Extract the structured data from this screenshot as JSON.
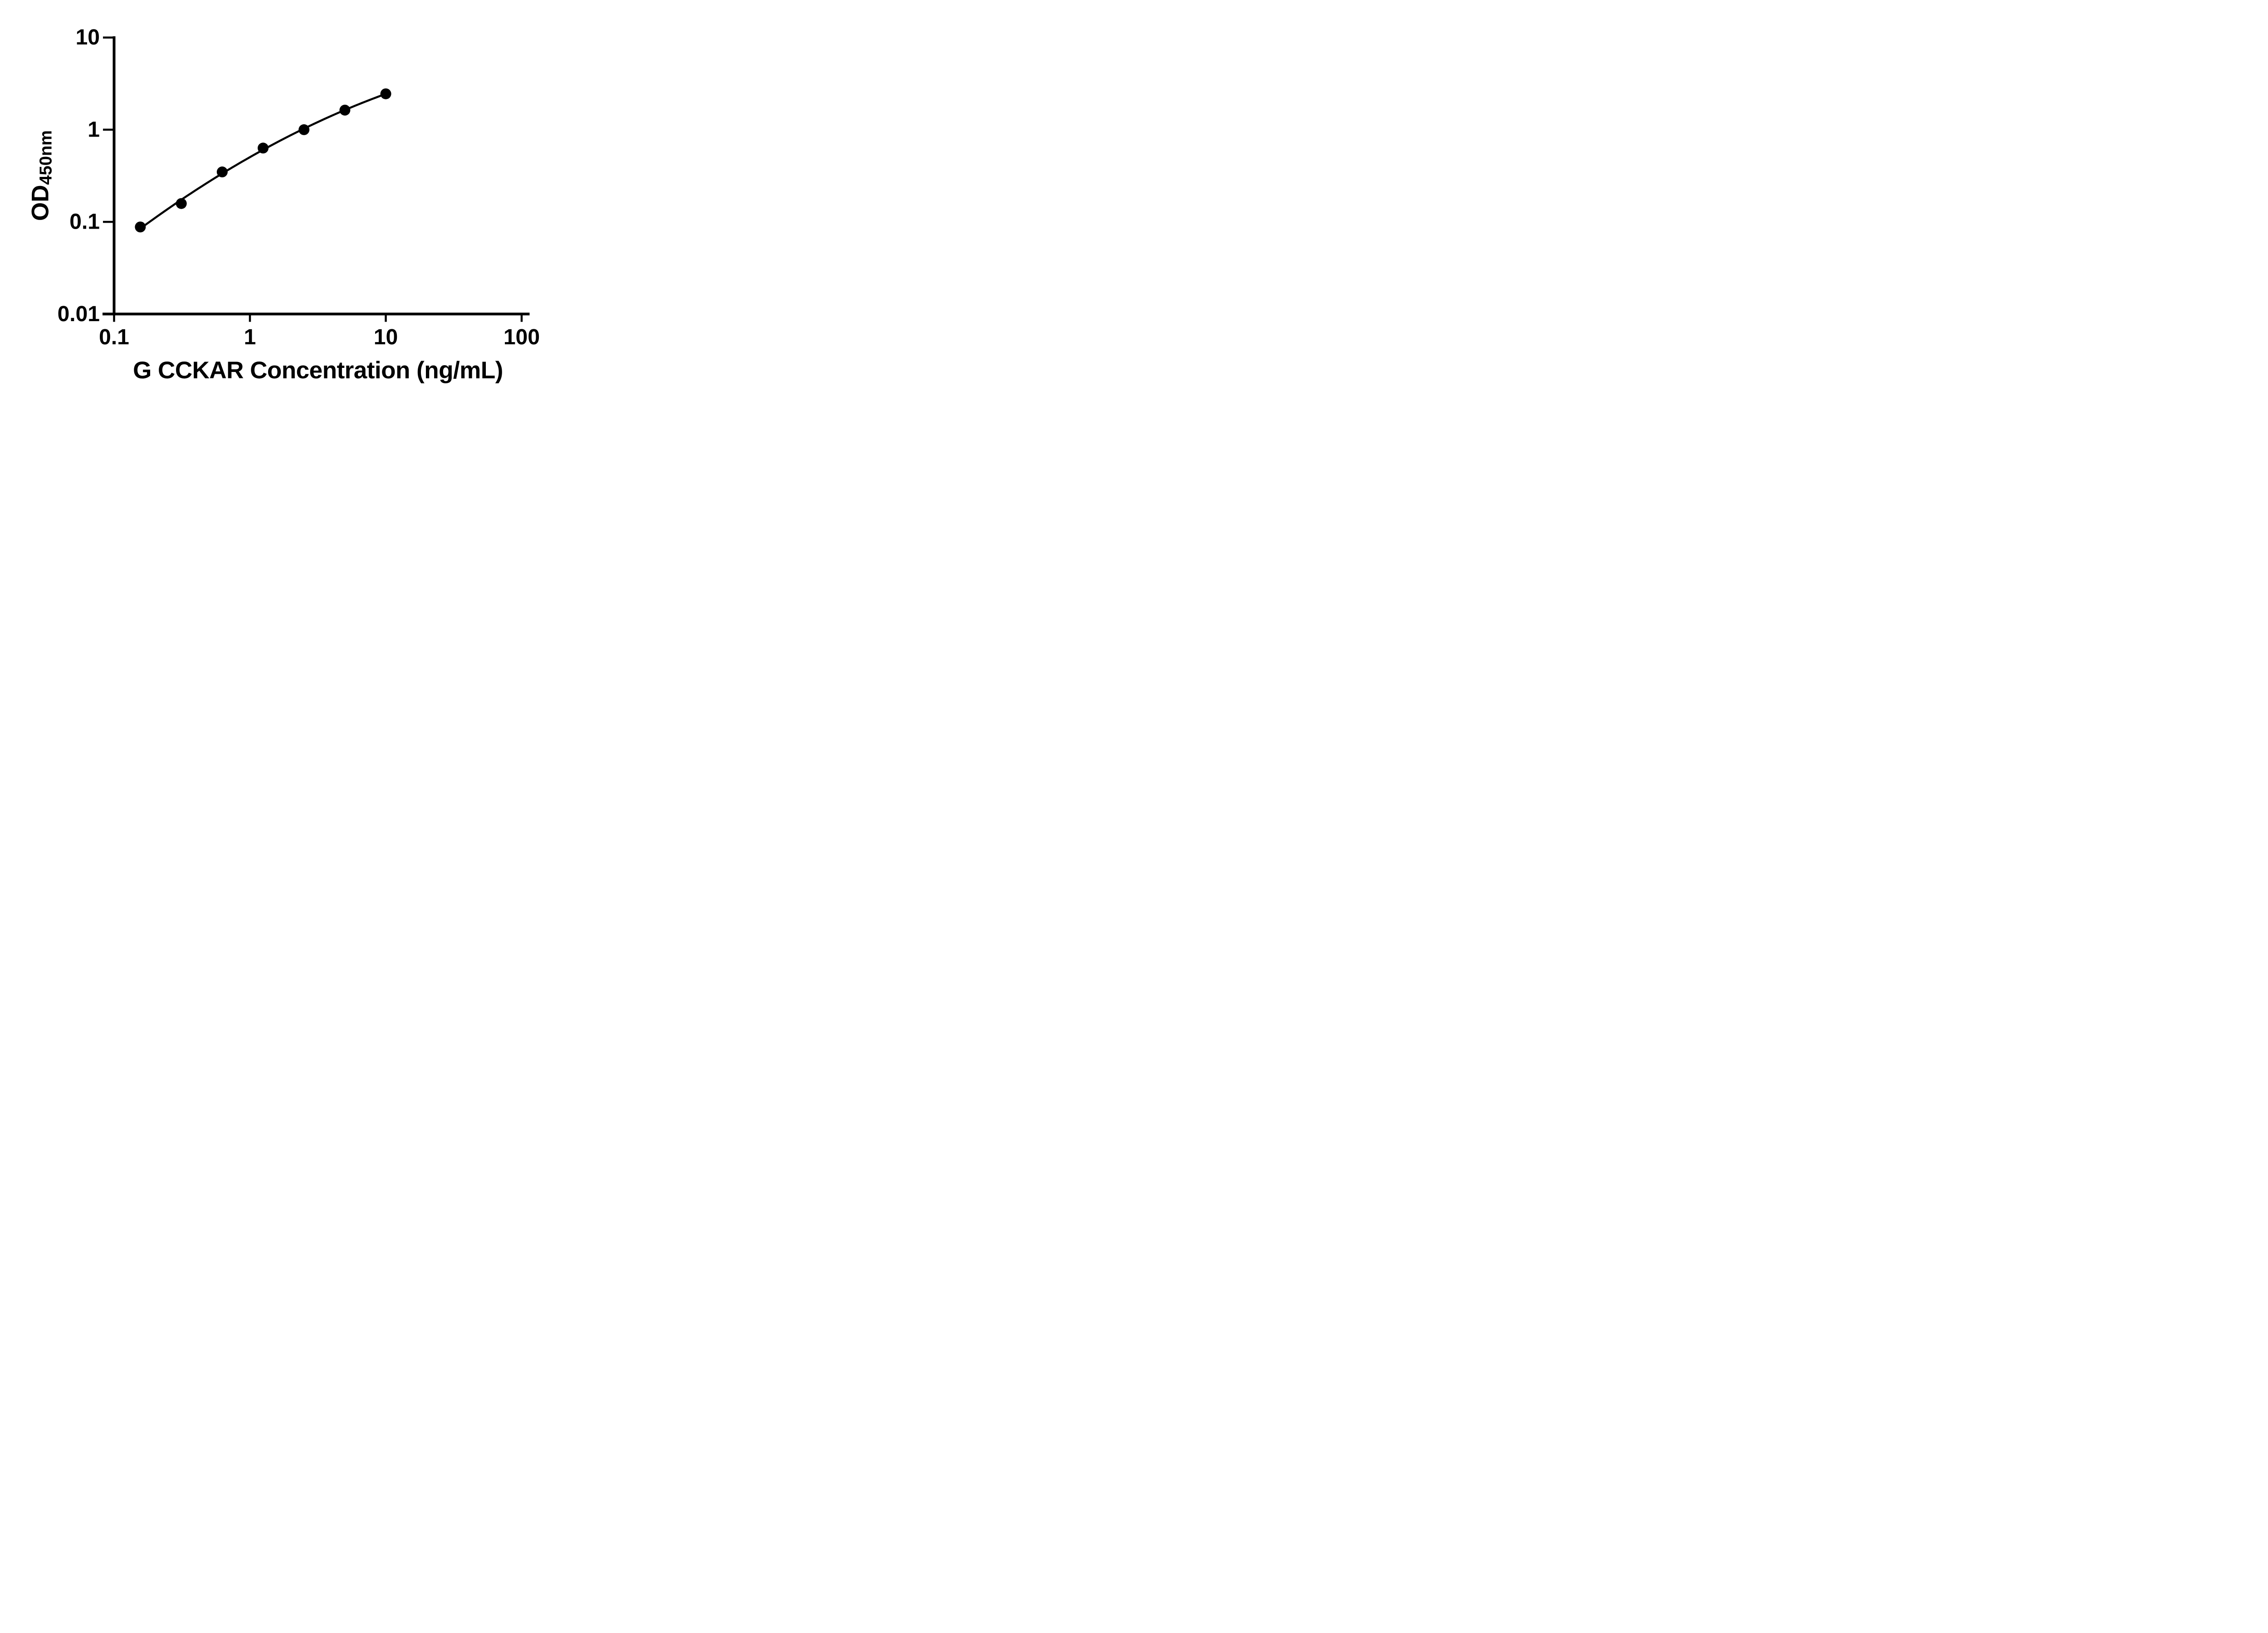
{
  "figure": {
    "background": "#ffffff",
    "ink_color": "#000000"
  },
  "chart_data": {
    "type": "scatter",
    "title": "",
    "xlabel": "G CCKAR Concentration (ng/mL)",
    "ylabel_main": "OD",
    "ylabel_sub": "450nm",
    "x_scale": "log",
    "y_scale": "log",
    "xlim": [
      0.1,
      100
    ],
    "ylim": [
      0.01,
      10
    ],
    "grid": false,
    "legend_position": "none",
    "x_ticks": [
      {
        "value": 0.1,
        "label": "0.1"
      },
      {
        "value": 1,
        "label": "1"
      },
      {
        "value": 10,
        "label": "10"
      },
      {
        "value": 100,
        "label": "100"
      }
    ],
    "y_ticks": [
      {
        "value": 10,
        "label": "10"
      },
      {
        "value": 1,
        "label": "1"
      },
      {
        "value": 0.1,
        "label": "0.1"
      },
      {
        "value": 0.01,
        "label": "0.01"
      }
    ],
    "series": [
      {
        "name": "standard-curve",
        "marker": "filled-circle",
        "color": "#000000",
        "fit": "log-log-quadratic",
        "x": [
          0.156,
          0.3125,
          0.625,
          1.25,
          2.5,
          5,
          10
        ],
        "y": [
          0.088,
          0.158,
          0.348,
          0.632,
          1.0,
          1.63,
          2.45
        ]
      }
    ]
  }
}
